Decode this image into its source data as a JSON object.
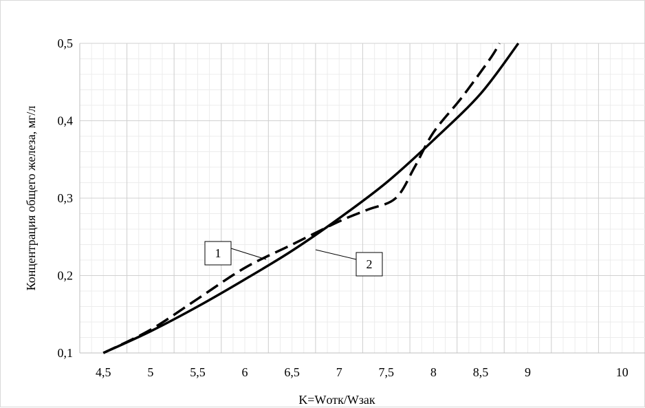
{
  "chart_data": {
    "type": "line",
    "title": "",
    "xlabel": "K=Wотк/Wзак",
    "ylabel": "Концентрация общего железа, мг/л",
    "xlim": [
      4.25,
      10.25
    ],
    "ylim": [
      0.1,
      0.5
    ],
    "x_ticks": [
      "4,5",
      "5",
      "5,5",
      "6",
      "6,5",
      "7",
      "7,5",
      "8",
      "8,5",
      "9",
      "10"
    ],
    "x_tick_values": [
      4.5,
      5,
      5.5,
      6,
      6.5,
      7,
      7.5,
      8,
      8.5,
      9,
      10
    ],
    "y_ticks": [
      "0,1",
      "0,2",
      "0,3",
      "0,4",
      "0,5"
    ],
    "y_tick_values": [
      0.1,
      0.2,
      0.3,
      0.4,
      0.5
    ],
    "grid": true,
    "legend": "none",
    "series": [
      {
        "name": "1",
        "style": "dashed",
        "color": "#000000",
        "x": [
          4.5,
          5.0,
          5.5,
          6.0,
          6.5,
          7.0,
          7.3,
          7.6,
          7.8,
          8.0,
          8.3,
          8.6,
          8.7
        ],
        "y": [
          0.1,
          0.13,
          0.17,
          0.21,
          0.24,
          0.27,
          0.285,
          0.3,
          0.34,
          0.385,
          0.43,
          0.48,
          0.5
        ]
      },
      {
        "name": "2",
        "style": "solid",
        "color": "#000000",
        "x": [
          4.5,
          5.0,
          5.5,
          6.0,
          6.5,
          7.0,
          7.5,
          8.0,
          8.5,
          8.9
        ],
        "y": [
          0.1,
          0.128,
          0.16,
          0.195,
          0.232,
          0.274,
          0.32,
          0.375,
          0.435,
          0.5
        ]
      }
    ],
    "annotations": [
      {
        "label": "1",
        "target_series": "1"
      },
      {
        "label": "2",
        "target_series": "2"
      }
    ]
  }
}
